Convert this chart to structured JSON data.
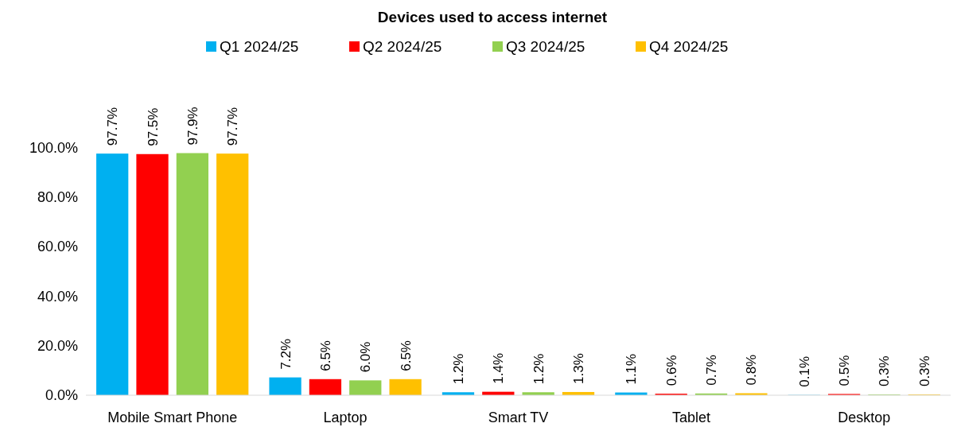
{
  "chart_data": {
    "type": "bar",
    "title": "Devices used to access internet",
    "categories": [
      "Mobile Smart Phone",
      "Laptop",
      "Smart TV",
      "Tablet",
      "Desktop"
    ],
    "series": [
      {
        "name": "Q1 2024/25",
        "color": "#00b0f0",
        "values": [
          97.7,
          7.2,
          1.2,
          1.1,
          0.1
        ],
        "value_labels": [
          "97.7%",
          "7.2%",
          "1.2%",
          "1.1%",
          "0.1%"
        ]
      },
      {
        "name": "Q2 2024/25",
        "color": "#ff0000",
        "values": [
          97.5,
          6.5,
          1.4,
          0.6,
          0.5
        ],
        "value_labels": [
          "97.5%",
          "6.5%",
          "1.4%",
          "0.6%",
          "0.5%"
        ]
      },
      {
        "name": "Q3 2024/25",
        "color": "#92d050",
        "values": [
          97.9,
          6.0,
          1.2,
          0.7,
          0.3
        ],
        "value_labels": [
          "97.9%",
          "6.0%",
          "1.2%",
          "0.7%",
          "0.3%"
        ]
      },
      {
        "name": "Q4 2024/25",
        "color": "#ffc000",
        "values": [
          97.7,
          6.5,
          1.3,
          0.8,
          0.3
        ],
        "value_labels": [
          "97.7%",
          "6.5%",
          "1.3%",
          "0.8%",
          "0.3%"
        ]
      }
    ],
    "ylim": [
      0,
      100
    ],
    "yticks": [
      {
        "value": 0,
        "label": "0.0%"
      },
      {
        "value": 20,
        "label": "20.0%"
      },
      {
        "value": 40,
        "label": "40.0%"
      },
      {
        "value": 60,
        "label": "60.0%"
      },
      {
        "value": 80,
        "label": "80.0%"
      },
      {
        "value": 100,
        "label": "100.0%"
      }
    ],
    "grid": false,
    "legend": "top"
  }
}
